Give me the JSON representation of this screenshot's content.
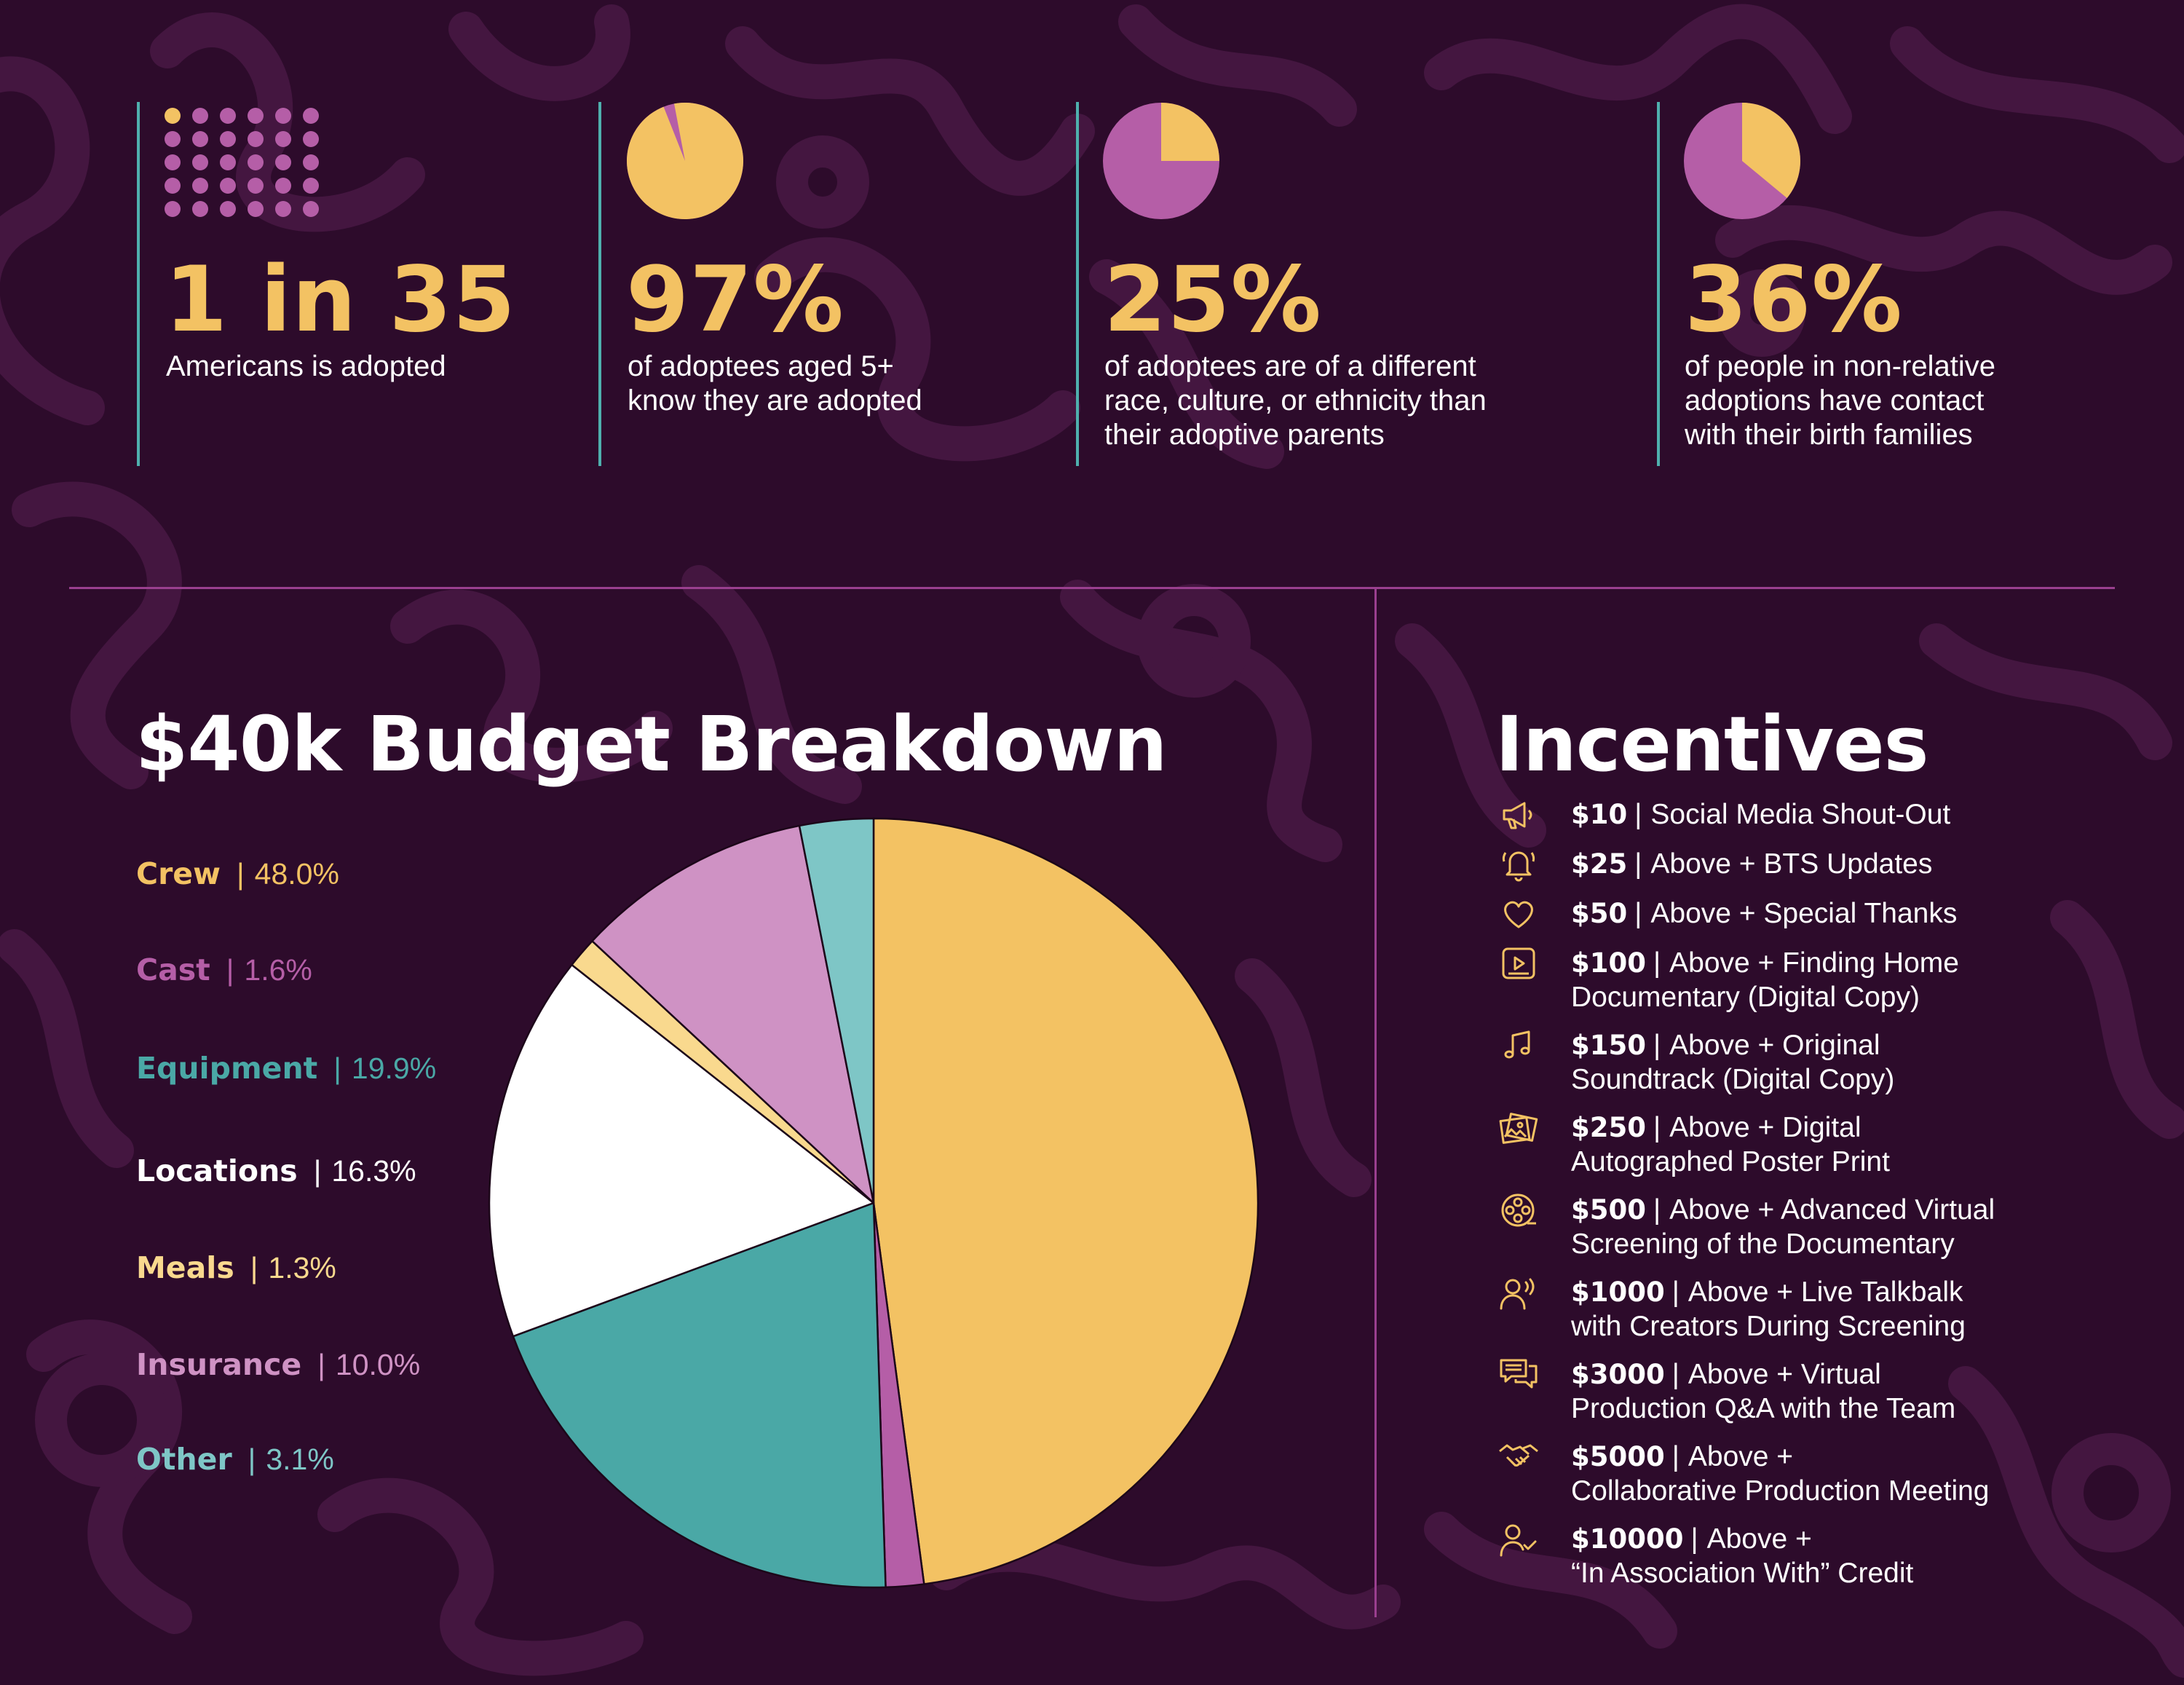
{
  "colors": {
    "background": "#2d0b2b",
    "yellow": "#f3c263",
    "magenta": "#b55ea7",
    "teal": "#4aa8a6",
    "white": "#ffffff",
    "pale_yellow": "#f9d98e",
    "pink": "#cf92c4",
    "light_teal": "#7ec6c6",
    "rule": "#9a3f8f"
  },
  "stats": [
    {
      "big": "1 in 35",
      "lines": [
        "Americans is adopted"
      ],
      "visual": "dot-grid"
    },
    {
      "big": "97%",
      "lines": [
        "of adoptees aged 5+",
        "know they are adopted"
      ],
      "pie_fraction": 0.97
    },
    {
      "big": "25%",
      "lines": [
        "of adoptees are of a different",
        "race, culture, or ethnicity than",
        "their adoptive parents"
      ],
      "pie_fraction": 0.25
    },
    {
      "big": "36%",
      "lines": [
        "of people in non-relative",
        "adoptions have contact",
        "with their birth families"
      ],
      "pie_fraction": 0.36
    }
  ],
  "budget": {
    "title": "$40k Budget Breakdown",
    "legend": [
      {
        "name": "Crew",
        "value": "48.0%",
        "color": "#f3c263"
      },
      {
        "name": "Cast",
        "value": "1.6%",
        "color": "#b55ea7"
      },
      {
        "name": "Equipment",
        "value": "19.9%",
        "color": "#4aa8a6"
      },
      {
        "name": "Locations",
        "value": "16.3%",
        "color": "#ffffff"
      },
      {
        "name": "Meals",
        "value": "1.3%",
        "color": "#f9d98e"
      },
      {
        "name": "Insurance",
        "value": "10.0%",
        "color": "#cf92c4"
      },
      {
        "name": "Other",
        "value": "3.1%",
        "color": "#7ec6c6"
      }
    ]
  },
  "chart_data": {
    "type": "pie",
    "title": "$40k Budget Breakdown",
    "categories": [
      "Crew",
      "Cast",
      "Equipment",
      "Locations",
      "Meals",
      "Insurance",
      "Other"
    ],
    "values": [
      48.0,
      1.6,
      19.9,
      16.3,
      1.3,
      10.0,
      3.1
    ],
    "colors": [
      "#f3c263",
      "#b55ea7",
      "#4aa8a6",
      "#ffffff",
      "#f9d98e",
      "#cf92c4",
      "#7ec6c6"
    ],
    "start": "12 o'clock",
    "direction": "clockwise",
    "legend_placement": "left"
  },
  "incentives": {
    "title": "Incentives",
    "items": [
      {
        "icon": "megaphone-icon",
        "amount": "$10",
        "lines": [
          "Social Media Shout-Out"
        ]
      },
      {
        "icon": "bell-icon",
        "amount": "$25",
        "lines": [
          "Above + BTS Updates"
        ]
      },
      {
        "icon": "heart-icon",
        "amount": "$50",
        "lines": [
          "Above + Special Thanks"
        ]
      },
      {
        "icon": "video-play-icon",
        "amount": "$100",
        "lines": [
          "Above + Finding Home",
          "Documentary (Digital Copy)"
        ]
      },
      {
        "icon": "music-note-icon",
        "amount": "$150",
        "lines": [
          "Above + Original",
          "Soundtrack (Digital Copy)"
        ]
      },
      {
        "icon": "photos-icon",
        "amount": "$250",
        "lines": [
          "Above + Digital",
          "Autographed Poster Print"
        ]
      },
      {
        "icon": "film-reel-icon",
        "amount": "$500",
        "lines": [
          "Above + Advanced Virtual",
          "Screening of the Documentary"
        ]
      },
      {
        "icon": "person-speaking-icon",
        "amount": "$1000",
        "lines": [
          "Above + Live Talkbalk",
          "with Creators During Screening"
        ]
      },
      {
        "icon": "chat-bubbles-icon",
        "amount": "$3000",
        "lines": [
          "Above + Virtual",
          "Production Q&A with the Team"
        ]
      },
      {
        "icon": "handshake-icon",
        "amount": "$5000",
        "lines": [
          "Above +",
          "Collaborative Production Meeting"
        ]
      },
      {
        "icon": "person-check-icon",
        "amount": "$10000",
        "lines": [
          "Above +",
          "“In Association With” Credit"
        ]
      }
    ]
  }
}
